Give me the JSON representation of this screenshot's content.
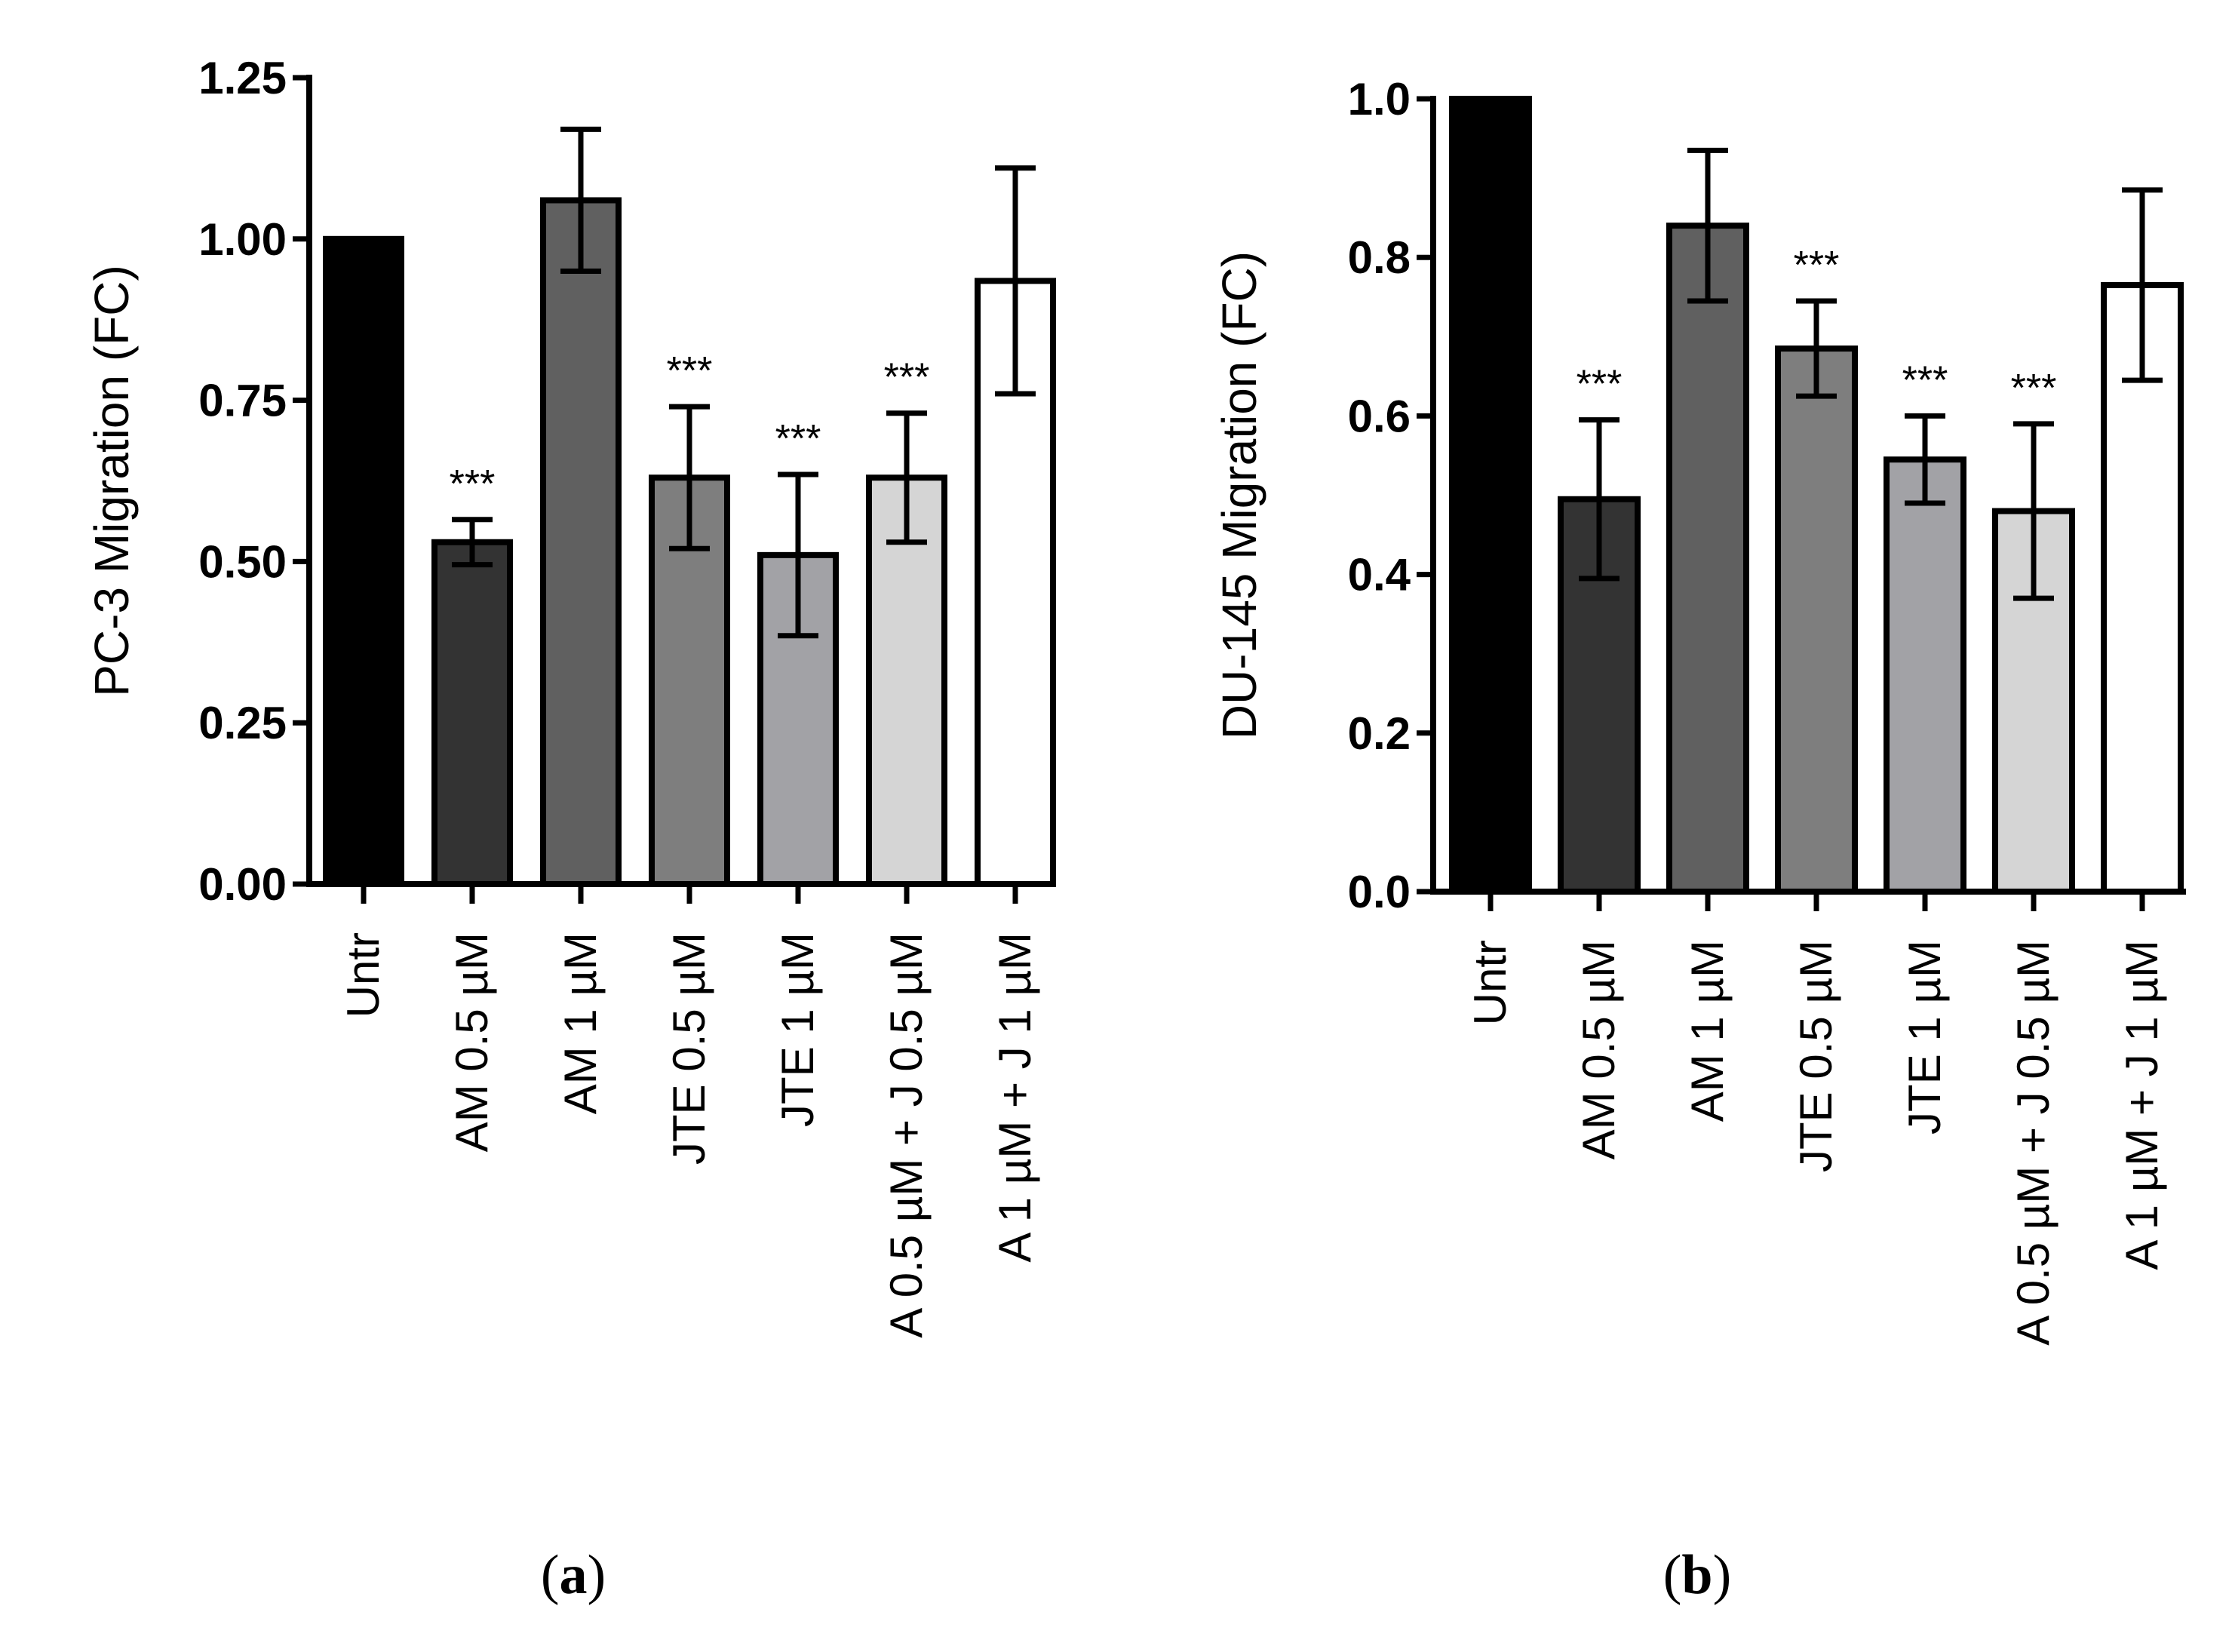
{
  "chart_data": [
    {
      "type": "bar",
      "panel": "a",
      "ylabel": "PC-3 Migration (FC)",
      "ylim": [
        0,
        1.25
      ],
      "yticks": [
        0,
        0.25,
        0.5,
        0.75,
        1.0,
        1.25
      ],
      "ytick_labels": [
        "0.00",
        "0.25",
        "0.50",
        "0.75",
        "1.00",
        "1.25"
      ],
      "categories": [
        "Untr",
        "AM 0.5 µM",
        "AM 1 µM",
        "JTE 0.5 µM",
        "JTE 1 µM",
        "A 0.5 µM + J 0.5 µM",
        "A 1 µM + J 1 µM"
      ],
      "values": [
        1.0,
        0.53,
        1.06,
        0.63,
        0.51,
        0.63,
        0.935
      ],
      "errors": [
        0,
        0.035,
        0.11,
        0.11,
        0.125,
        0.1,
        0.175
      ],
      "significance": [
        "",
        "***",
        "",
        "***",
        "***",
        "***",
        ""
      ],
      "colors": [
        "#000000",
        "#333333",
        "#606060",
        "#7e7e7e",
        "#a2a2a6",
        "#d5d5d5",
        "#ffffff"
      ],
      "grid": false,
      "legend": "none"
    },
    {
      "type": "bar",
      "panel": "b",
      "ylabel": "DU-145 Migration (FC)",
      "ylim": [
        0,
        1.0
      ],
      "yticks": [
        0,
        0.2,
        0.4,
        0.6,
        0.8,
        1.0
      ],
      "ytick_labels": [
        "0.0",
        "0.2",
        "0.4",
        "0.6",
        "0.8",
        "1.0"
      ],
      "categories": [
        "Untr",
        "AM 0.5 µM",
        "AM 1 µM",
        "JTE 0.5 µM",
        "JTE 1 µM",
        "A 0.5 µM + J 0.5 µM",
        "A 1 µM + J 1 µM"
      ],
      "values": [
        1.0,
        0.495,
        0.84,
        0.685,
        0.545,
        0.48,
        0.765
      ],
      "errors": [
        0,
        0.1,
        0.095,
        0.06,
        0.055,
        0.11,
        0.12
      ],
      "significance": [
        "",
        "***",
        "",
        "***",
        "***",
        "***",
        ""
      ],
      "colors": [
        "#000000",
        "#333333",
        "#606060",
        "#7e7e7e",
        "#a2a2a6",
        "#d5d5d5",
        "#ffffff"
      ],
      "grid": false,
      "legend": "none"
    }
  ],
  "panel_labels": [
    {
      "open": "(",
      "letter": "a",
      "close": ")"
    },
    {
      "open": "(",
      "letter": "b",
      "close": ")"
    }
  ]
}
